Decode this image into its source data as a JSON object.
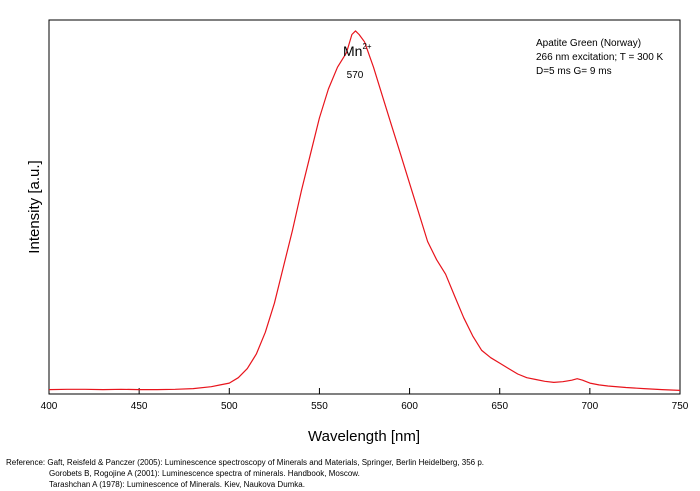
{
  "chart_data": {
    "type": "line",
    "xlabel": "Wavelength [nm]",
    "ylabel": "Intensity [a.u.]",
    "xlim": [
      400,
      750
    ],
    "ylim": [
      0,
      1.03
    ],
    "xticks": [
      400,
      450,
      500,
      550,
      600,
      650,
      700,
      750
    ],
    "grid": false,
    "line_color": "#e8141c",
    "peak_label": {
      "ion": "Mn",
      "charge": "2+",
      "position_text": "570",
      "x": 570
    },
    "info_lines": [
      "Apatite Green (Norway)",
      "266 nm excitation; T = 300 K",
      "D=5 ms G= 9 ms"
    ],
    "series": [
      {
        "x": [
          400,
          410,
          420,
          430,
          440,
          450,
          460,
          470,
          480,
          490,
          495,
          500,
          505,
          510,
          515,
          520,
          525,
          530,
          535,
          540,
          545,
          550,
          555,
          560,
          565,
          568,
          570,
          572,
          575,
          580,
          585,
          590,
          595,
          600,
          605,
          610,
          615,
          620,
          625,
          630,
          635,
          640,
          645,
          650,
          655,
          660,
          665,
          670,
          675,
          680,
          685,
          690,
          693,
          696,
          700,
          705,
          710,
          720,
          730,
          740,
          750
        ],
        "y": [
          0.012,
          0.013,
          0.013,
          0.012,
          0.013,
          0.012,
          0.012,
          0.013,
          0.015,
          0.02,
          0.025,
          0.03,
          0.045,
          0.07,
          0.11,
          0.17,
          0.25,
          0.35,
          0.45,
          0.56,
          0.66,
          0.76,
          0.84,
          0.9,
          0.94,
          0.99,
          1.0,
          0.99,
          0.97,
          0.9,
          0.82,
          0.74,
          0.66,
          0.58,
          0.5,
          0.42,
          0.37,
          0.33,
          0.27,
          0.21,
          0.16,
          0.12,
          0.1,
          0.085,
          0.07,
          0.055,
          0.045,
          0.04,
          0.035,
          0.032,
          0.034,
          0.038,
          0.042,
          0.038,
          0.03,
          0.025,
          0.022,
          0.018,
          0.015,
          0.012,
          0.01
        ]
      }
    ]
  },
  "references": [
    "Reference: Gaft, Reisfeld & Panczer (2005): Luminescence spectroscopy of Minerals and Materials, Springer, Berlin Heidelberg, 356 p.",
    "Gorobets B, Rogojine A (2001): Luminescence spectra of minerals. Handbook, Moscow.",
    "Tarashchan A (1978): Luminescence of Minerals. Kiev, Naukova Dumka."
  ]
}
